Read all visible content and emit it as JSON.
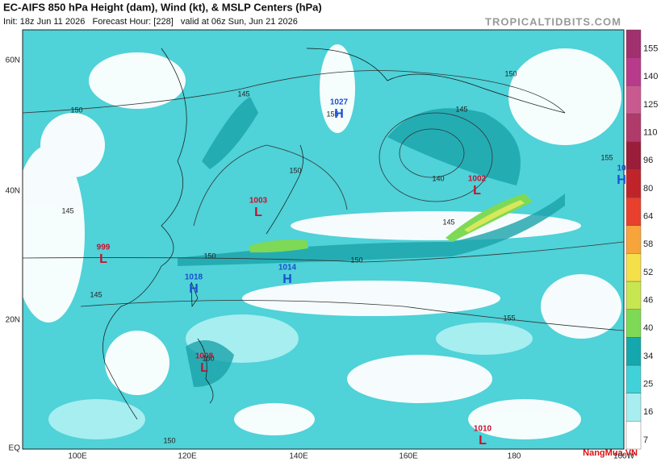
{
  "header": {
    "title": "EC-AIFS 850 hPa Height (dam), Wind (kt), & MSLP Centers (hPa)",
    "subtitle": "Init: 18z Jun 11 2026   Forecast Hour: [228]   valid at 06z Sun, Jun 21 2026",
    "source": "TROPICALTIDBITS.COM"
  },
  "axes": {
    "latitudes": [
      "60N",
      "40N",
      "20N",
      "EQ"
    ],
    "longitudes": [
      "100E",
      "120E",
      "140E",
      "160E",
      "180",
      "160W"
    ]
  },
  "colorbar": {
    "ticks": [
      7,
      16,
      25,
      34,
      40,
      46,
      52,
      58,
      64,
      80,
      96,
      110,
      125,
      140,
      155
    ]
  },
  "centers": [
    {
      "type": "H",
      "pressure": 1027
    },
    {
      "type": "L",
      "pressure": 1003
    },
    {
      "type": "L",
      "pressure": 999
    },
    {
      "type": "H",
      "pressure": 1018
    },
    {
      "type": "H",
      "pressure": 1014
    },
    {
      "type": "L",
      "pressure": 1002
    },
    {
      "type": "L",
      "pressure": 1008
    },
    {
      "type": "L",
      "pressure": 1010
    },
    {
      "type": "H",
      "pressure": 10
    }
  ],
  "contour_labels": [
    150,
    145,
    155,
    150,
    145,
    140,
    150,
    145,
    145,
    150,
    150,
    145,
    155,
    155,
    150,
    150
  ],
  "brand": "NangMua.VN"
}
